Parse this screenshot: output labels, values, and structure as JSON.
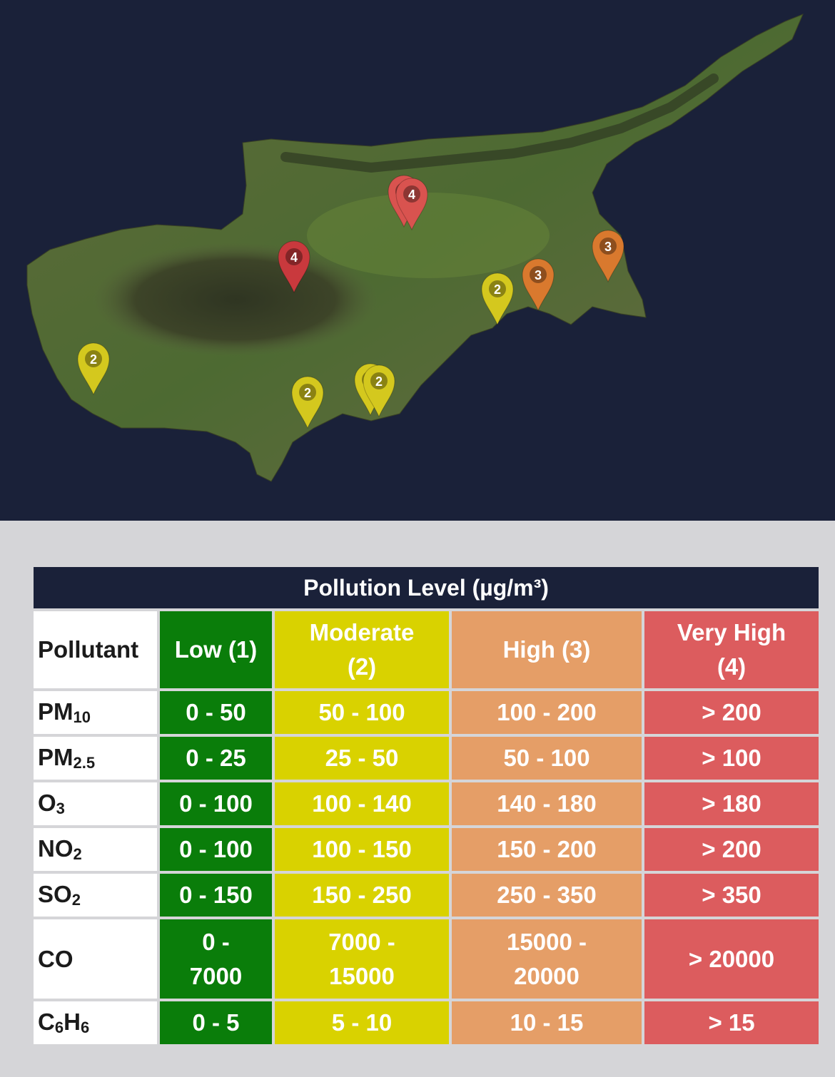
{
  "map": {
    "markers": [
      {
        "id": "marker-nicosia-a",
        "level": "4",
        "color": "#d9534f"
      },
      {
        "id": "marker-nicosia-b",
        "level": "4",
        "color": "#d9534f"
      },
      {
        "id": "marker-troodos-north",
        "level": "4",
        "color": "#c9393d"
      },
      {
        "id": "marker-famagusta",
        "level": "3",
        "color": "#d9792e"
      },
      {
        "id": "marker-larnaca-north",
        "level": "3",
        "color": "#d9792e"
      },
      {
        "id": "marker-larnaca",
        "level": "2",
        "color": "#d4c81e"
      },
      {
        "id": "marker-paphos",
        "level": "2",
        "color": "#d4c81e"
      },
      {
        "id": "marker-limassol-west",
        "level": "2",
        "color": "#d4c81e"
      },
      {
        "id": "marker-limassol-a",
        "level": "2",
        "color": "#d4c81e"
      },
      {
        "id": "marker-limassol-b",
        "level": "2",
        "color": "#d4c81e"
      }
    ]
  },
  "table": {
    "title": "Pollution Level (µg/m³)",
    "header": {
      "pollutant": "Pollutant",
      "low": "Low (1)",
      "moderate_line1": "Moderate",
      "moderate_line2": "(2)",
      "high": "High (3)",
      "veryhigh_line1": "Very High",
      "veryhigh_line2": "(4)"
    },
    "rows": [
      {
        "base": "PM",
        "sub": "10",
        "tail": "",
        "low": "0 - 50",
        "moderate": "50 - 100",
        "high": "100 - 200",
        "veryhigh": "> 200"
      },
      {
        "base": "PM",
        "sub": "2.5",
        "tail": "",
        "low": "0 - 25",
        "moderate": "25 - 50",
        "high": "50 - 100",
        "veryhigh": "> 100"
      },
      {
        "base": "O",
        "sub": "3",
        "tail": "",
        "low": "0 - 100",
        "moderate": "100 - 140",
        "high": "140 - 180",
        "veryhigh": "> 180"
      },
      {
        "base": "NO",
        "sub": "2",
        "tail": "",
        "low": "0 - 100",
        "moderate": "100 - 150",
        "high": "150 - 200",
        "veryhigh": "> 200"
      },
      {
        "base": "SO",
        "sub": "2",
        "tail": "",
        "low": "0 - 150",
        "moderate": "150 - 250",
        "high": "250 - 350",
        "veryhigh": "> 350"
      },
      {
        "base": "CO",
        "sub": "",
        "tail": "",
        "low_l1": "0 -",
        "low_l2": "7000",
        "moderate_l1": "7000 -",
        "moderate_l2": "15000",
        "high_l1": "15000 -",
        "high_l2": "20000",
        "veryhigh": "> 20000"
      },
      {
        "base": "C",
        "sub": "6",
        "tail": "H",
        "sub2": "6",
        "low": "0 - 5",
        "moderate": "5 - 10",
        "high": "10 - 15",
        "veryhigh": "> 15"
      }
    ]
  },
  "colors": {
    "background_map": "#1a2139",
    "low": "#0a7d0a",
    "moderate": "#d9d200",
    "high": "#e59e67",
    "very_high": "#dc5c5e"
  }
}
